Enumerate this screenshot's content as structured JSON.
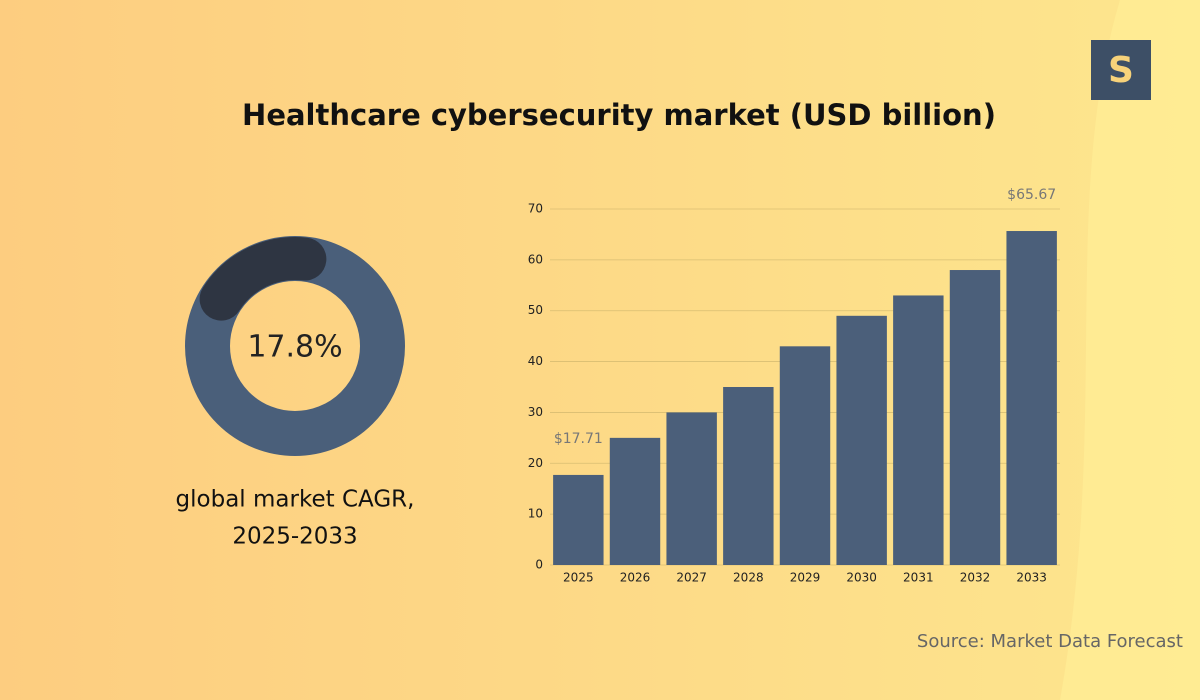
{
  "chart_data": [
    {
      "type": "donut",
      "values": [
        17.8
      ],
      "value_labels": [
        "17.8%"
      ],
      "total": 100,
      "color": "#2e3542",
      "track_color": "#4a5f7a",
      "caption": [
        "global market CAGR,",
        "2025-2033"
      ]
    },
    {
      "type": "bar",
      "title": "Healthcare cybersecurity market (USD billion)",
      "categories": [
        "2025",
        "2026",
        "2027",
        "2028",
        "2029",
        "2030",
        "2031",
        "2032",
        "2033"
      ],
      "values": [
        17.71,
        25,
        30,
        35,
        43,
        49,
        53,
        58,
        65.67
      ],
      "value_labels": [
        "$17.71",
        null,
        null,
        null,
        null,
        null,
        null,
        null,
        "$65.67"
      ],
      "color": "#4b5f7a",
      "ylim": [
        0,
        70
      ],
      "yticks": [
        0,
        10,
        20,
        30,
        40,
        50,
        60,
        70
      ],
      "grid": true
    }
  ],
  "logo": "S",
  "source": "Source: Market Data Forecast"
}
